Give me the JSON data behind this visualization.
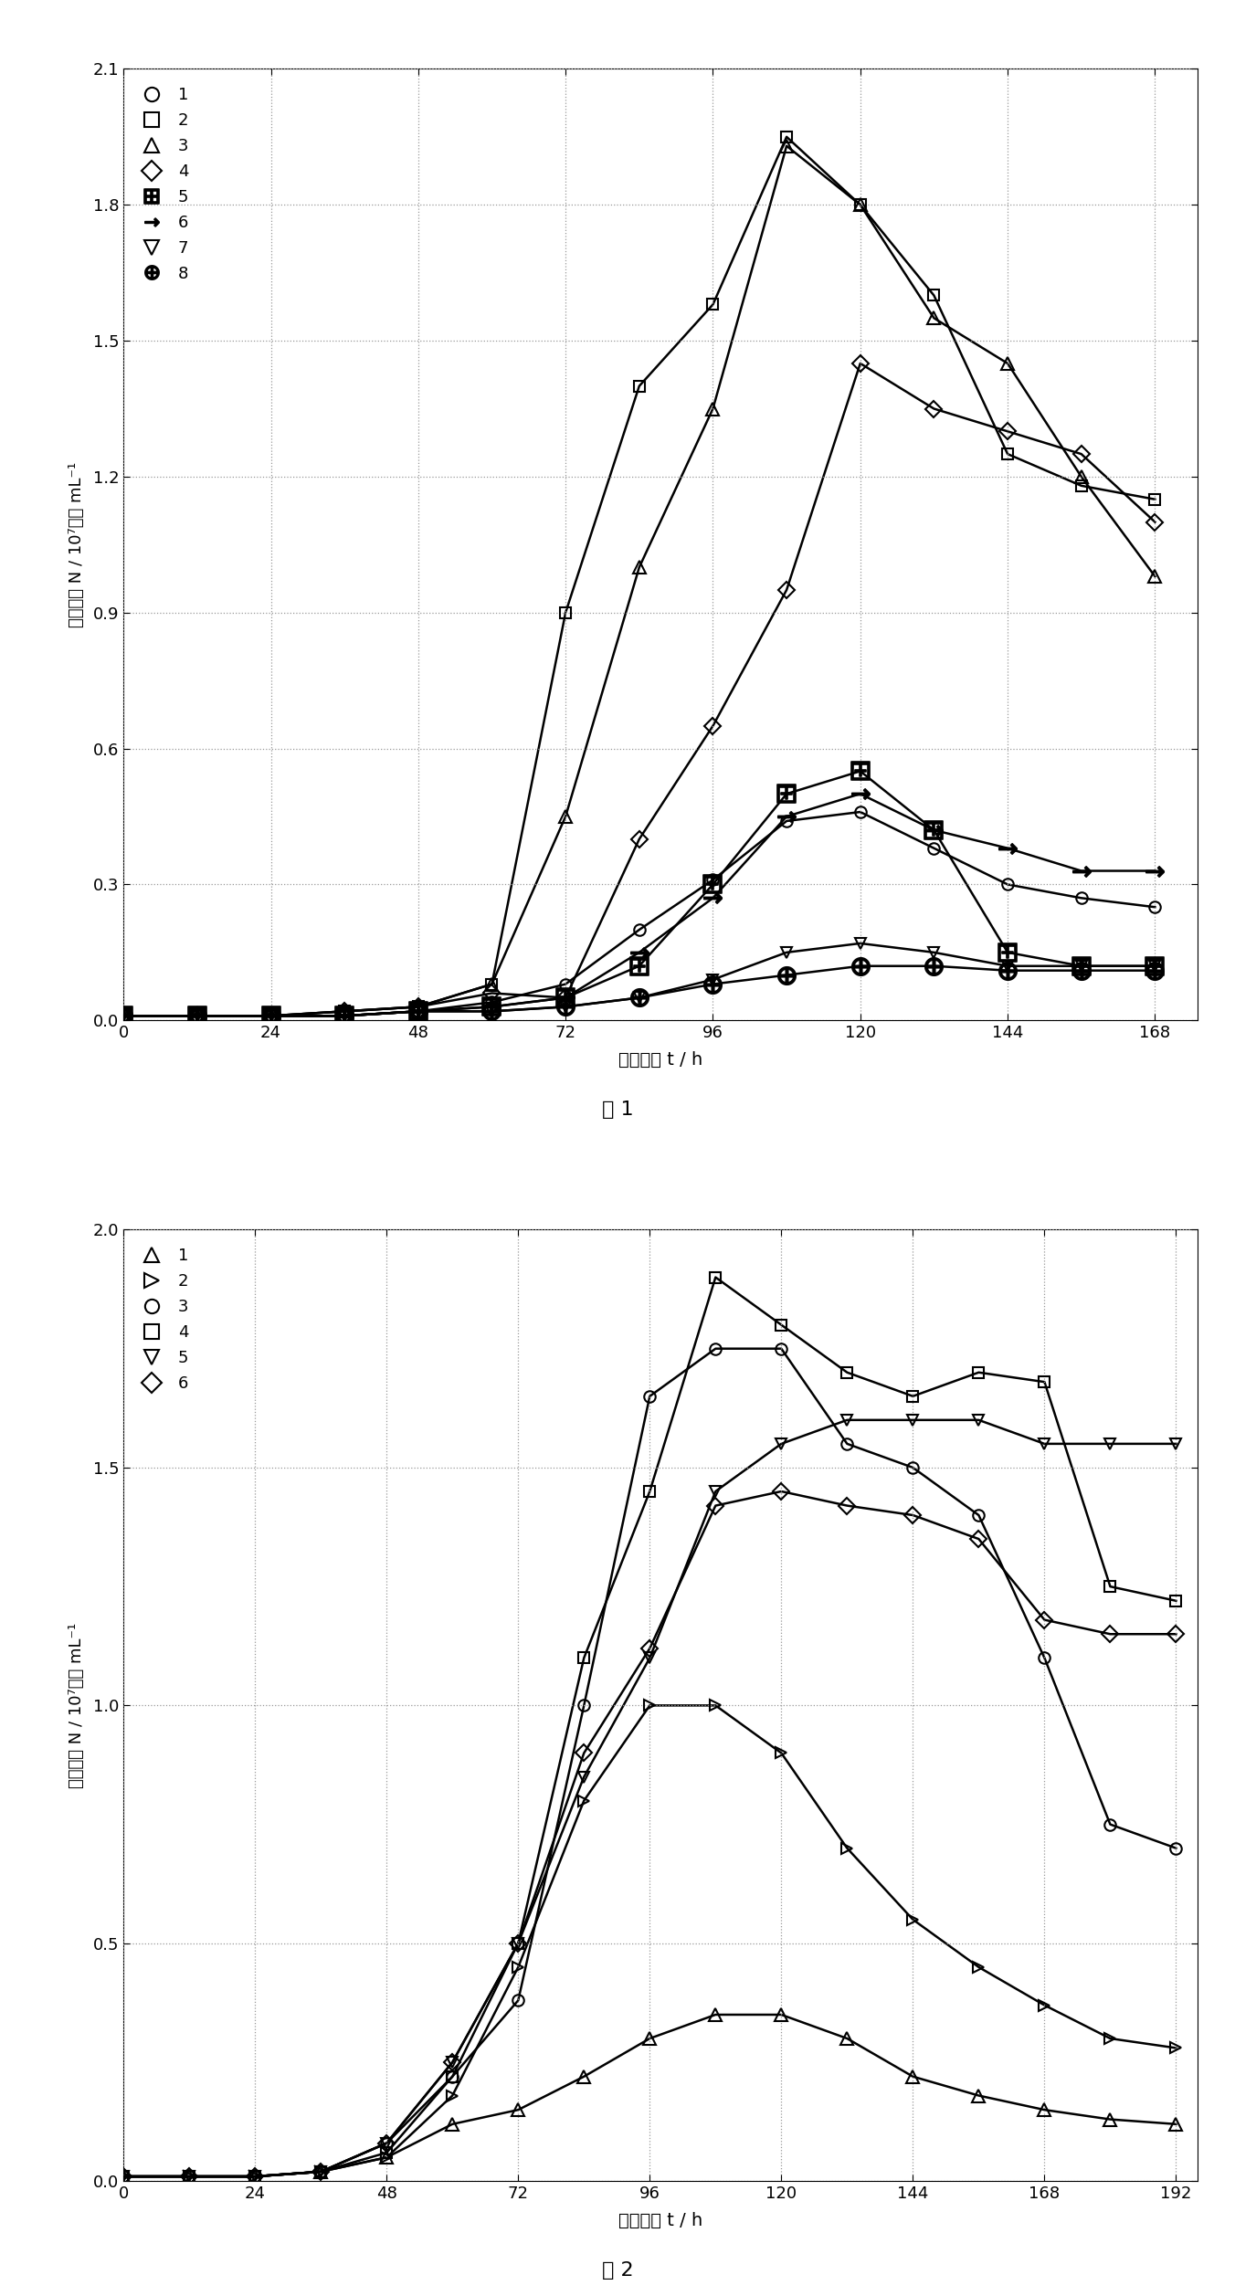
{
  "fig1": {
    "title": "图 1",
    "xlabel": "培养时间 t / h",
    "ylabel": "细胞密度 N / 10⁷细胞 mL⁻¹",
    "xlim": [
      0,
      175
    ],
    "ylim": [
      0,
      2.1
    ],
    "xticks": [
      0,
      24,
      48,
      72,
      96,
      120,
      144,
      168
    ],
    "yticks": [
      0,
      0.3,
      0.6,
      0.9,
      1.2,
      1.5,
      1.8,
      2.1
    ],
    "series": [
      {
        "label": "1",
        "marker": "o",
        "points": [
          [
            0,
            0.01
          ],
          [
            12,
            0.01
          ],
          [
            24,
            0.01
          ],
          [
            36,
            0.01
          ],
          [
            48,
            0.02
          ],
          [
            60,
            0.04
          ],
          [
            72,
            0.08
          ],
          [
            84,
            0.2
          ],
          [
            96,
            0.31
          ],
          [
            108,
            0.44
          ],
          [
            120,
            0.46
          ],
          [
            132,
            0.38
          ],
          [
            144,
            0.3
          ],
          [
            156,
            0.27
          ],
          [
            168,
            0.25
          ]
        ]
      },
      {
        "label": "2",
        "marker": "s",
        "points": [
          [
            0,
            0.01
          ],
          [
            12,
            0.01
          ],
          [
            24,
            0.01
          ],
          [
            36,
            0.02
          ],
          [
            48,
            0.03
          ],
          [
            60,
            0.08
          ],
          [
            72,
            0.9
          ],
          [
            84,
            1.4
          ],
          [
            96,
            1.58
          ],
          [
            108,
            1.95
          ],
          [
            120,
            1.8
          ],
          [
            132,
            1.6
          ],
          [
            144,
            1.25
          ],
          [
            156,
            1.18
          ],
          [
            168,
            1.15
          ]
        ]
      },
      {
        "label": "3",
        "marker": "^",
        "points": [
          [
            0,
            0.01
          ],
          [
            12,
            0.01
          ],
          [
            24,
            0.01
          ],
          [
            36,
            0.02
          ],
          [
            48,
            0.03
          ],
          [
            60,
            0.08
          ],
          [
            72,
            0.45
          ],
          [
            84,
            1.0
          ],
          [
            96,
            1.35
          ],
          [
            108,
            1.93
          ],
          [
            120,
            1.8
          ],
          [
            132,
            1.55
          ],
          [
            144,
            1.45
          ],
          [
            156,
            1.2
          ],
          [
            168,
            0.98
          ]
        ]
      },
      {
        "label": "4",
        "marker": "D",
        "points": [
          [
            0,
            0.01
          ],
          [
            12,
            0.01
          ],
          [
            24,
            0.01
          ],
          [
            36,
            0.02
          ],
          [
            48,
            0.03
          ],
          [
            60,
            0.06
          ],
          [
            72,
            0.05
          ],
          [
            84,
            0.4
          ],
          [
            96,
            0.65
          ],
          [
            108,
            0.95
          ],
          [
            120,
            1.45
          ],
          [
            132,
            1.35
          ],
          [
            144,
            1.3
          ],
          [
            156,
            1.25
          ],
          [
            168,
            1.1
          ]
        ]
      },
      {
        "label": "5",
        "marker": "boxplus",
        "points": [
          [
            0,
            0.01
          ],
          [
            12,
            0.01
          ],
          [
            24,
            0.01
          ],
          [
            36,
            0.01
          ],
          [
            48,
            0.02
          ],
          [
            60,
            0.03
          ],
          [
            72,
            0.05
          ],
          [
            84,
            0.12
          ],
          [
            96,
            0.3
          ],
          [
            108,
            0.5
          ],
          [
            120,
            0.55
          ],
          [
            132,
            0.42
          ],
          [
            144,
            0.15
          ],
          [
            156,
            0.12
          ],
          [
            168,
            0.12
          ]
        ]
      },
      {
        "label": "6",
        "marker": "rightarrow",
        "points": [
          [
            0,
            0.01
          ],
          [
            12,
            0.01
          ],
          [
            24,
            0.01
          ],
          [
            36,
            0.01
          ],
          [
            48,
            0.02
          ],
          [
            60,
            0.03
          ],
          [
            72,
            0.05
          ],
          [
            84,
            0.15
          ],
          [
            96,
            0.27
          ],
          [
            108,
            0.45
          ],
          [
            120,
            0.5
          ],
          [
            132,
            0.42
          ],
          [
            144,
            0.38
          ],
          [
            156,
            0.33
          ],
          [
            168,
            0.33
          ]
        ]
      },
      {
        "label": "7",
        "marker": "v",
        "points": [
          [
            0,
            0.01
          ],
          [
            12,
            0.01
          ],
          [
            24,
            0.01
          ],
          [
            36,
            0.01
          ],
          [
            48,
            0.02
          ],
          [
            60,
            0.02
          ],
          [
            72,
            0.03
          ],
          [
            84,
            0.05
          ],
          [
            96,
            0.09
          ],
          [
            108,
            0.15
          ],
          [
            120,
            0.17
          ],
          [
            132,
            0.15
          ],
          [
            144,
            0.12
          ],
          [
            156,
            0.12
          ],
          [
            168,
            0.12
          ]
        ]
      },
      {
        "label": "8",
        "marker": "circleplus",
        "points": [
          [
            0,
            0.01
          ],
          [
            12,
            0.01
          ],
          [
            24,
            0.01
          ],
          [
            36,
            0.01
          ],
          [
            48,
            0.02
          ],
          [
            60,
            0.02
          ],
          [
            72,
            0.03
          ],
          [
            84,
            0.05
          ],
          [
            96,
            0.08
          ],
          [
            108,
            0.1
          ],
          [
            120,
            0.12
          ],
          [
            132,
            0.12
          ],
          [
            144,
            0.11
          ],
          [
            156,
            0.11
          ],
          [
            168,
            0.11
          ]
        ]
      }
    ]
  },
  "fig2": {
    "title": "图 2",
    "xlabel": "培养时间 t / h",
    "ylabel": "细胞密度 N / 10⁷细胞 mL⁻¹",
    "xlim": [
      0,
      196
    ],
    "ylim": [
      0,
      2.0
    ],
    "xticks": [
      0,
      24,
      48,
      72,
      96,
      120,
      144,
      168,
      192
    ],
    "yticks": [
      0,
      0.5,
      1.0,
      1.5,
      2.0
    ],
    "series": [
      {
        "label": "1",
        "marker": "^",
        "points": [
          [
            0,
            0.01
          ],
          [
            12,
            0.01
          ],
          [
            24,
            0.01
          ],
          [
            36,
            0.02
          ],
          [
            48,
            0.05
          ],
          [
            60,
            0.12
          ],
          [
            72,
            0.15
          ],
          [
            84,
            0.22
          ],
          [
            96,
            0.3
          ],
          [
            108,
            0.35
          ],
          [
            120,
            0.35
          ],
          [
            132,
            0.3
          ],
          [
            144,
            0.22
          ],
          [
            156,
            0.18
          ],
          [
            168,
            0.15
          ],
          [
            180,
            0.13
          ],
          [
            192,
            0.12
          ]
        ]
      },
      {
        "label": "2",
        "marker": ">",
        "points": [
          [
            0,
            0.01
          ],
          [
            12,
            0.01
          ],
          [
            24,
            0.01
          ],
          [
            36,
            0.02
          ],
          [
            48,
            0.05
          ],
          [
            60,
            0.18
          ],
          [
            72,
            0.45
          ],
          [
            84,
            0.8
          ],
          [
            96,
            1.0
          ],
          [
            108,
            1.0
          ],
          [
            120,
            0.9
          ],
          [
            132,
            0.7
          ],
          [
            144,
            0.55
          ],
          [
            156,
            0.45
          ],
          [
            168,
            0.37
          ],
          [
            180,
            0.3
          ],
          [
            192,
            0.28
          ]
        ]
      },
      {
        "label": "3",
        "marker": "o",
        "points": [
          [
            0,
            0.01
          ],
          [
            12,
            0.01
          ],
          [
            24,
            0.01
          ],
          [
            36,
            0.02
          ],
          [
            48,
            0.08
          ],
          [
            60,
            0.22
          ],
          [
            72,
            0.38
          ],
          [
            84,
            1.0
          ],
          [
            96,
            1.65
          ],
          [
            108,
            1.75
          ],
          [
            120,
            1.75
          ],
          [
            132,
            1.55
          ],
          [
            144,
            1.5
          ],
          [
            156,
            1.4
          ],
          [
            168,
            1.1
          ],
          [
            180,
            0.75
          ],
          [
            192,
            0.7
          ]
        ]
      },
      {
        "label": "4",
        "marker": "s",
        "points": [
          [
            0,
            0.01
          ],
          [
            12,
            0.01
          ],
          [
            24,
            0.01
          ],
          [
            36,
            0.02
          ],
          [
            48,
            0.06
          ],
          [
            60,
            0.22
          ],
          [
            72,
            0.5
          ],
          [
            84,
            1.1
          ],
          [
            96,
            1.45
          ],
          [
            108,
            1.9
          ],
          [
            120,
            1.8
          ],
          [
            132,
            1.7
          ],
          [
            144,
            1.65
          ],
          [
            156,
            1.7
          ],
          [
            168,
            1.68
          ],
          [
            180,
            1.25
          ],
          [
            192,
            1.22
          ]
        ]
      },
      {
        "label": "5",
        "marker": "v",
        "points": [
          [
            0,
            0.01
          ],
          [
            12,
            0.01
          ],
          [
            24,
            0.01
          ],
          [
            36,
            0.02
          ],
          [
            48,
            0.08
          ],
          [
            60,
            0.25
          ],
          [
            72,
            0.5
          ],
          [
            84,
            0.85
          ],
          [
            96,
            1.1
          ],
          [
            108,
            1.45
          ],
          [
            120,
            1.55
          ],
          [
            132,
            1.6
          ],
          [
            144,
            1.6
          ],
          [
            156,
            1.6
          ],
          [
            168,
            1.55
          ],
          [
            180,
            1.55
          ],
          [
            192,
            1.55
          ]
        ]
      },
      {
        "label": "6",
        "marker": "D",
        "points": [
          [
            0,
            0.01
          ],
          [
            12,
            0.01
          ],
          [
            24,
            0.01
          ],
          [
            36,
            0.02
          ],
          [
            48,
            0.08
          ],
          [
            60,
            0.25
          ],
          [
            72,
            0.5
          ],
          [
            84,
            0.9
          ],
          [
            96,
            1.12
          ],
          [
            108,
            1.42
          ],
          [
            120,
            1.45
          ],
          [
            132,
            1.42
          ],
          [
            144,
            1.4
          ],
          [
            156,
            1.35
          ],
          [
            168,
            1.18
          ],
          [
            180,
            1.15
          ],
          [
            192,
            1.15
          ]
        ]
      }
    ]
  },
  "background_color": "#ffffff"
}
